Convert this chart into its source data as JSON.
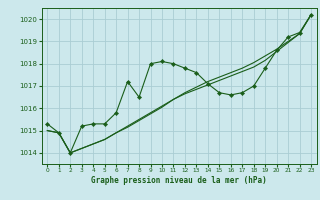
{
  "title": "Graphe pression niveau de la mer (hPa)",
  "background_color": "#cce8ec",
  "grid_color": "#aacdd4",
  "line_color": "#1a5e1a",
  "xlim": [
    -0.5,
    23.5
  ],
  "ylim": [
    1013.5,
    1020.5
  ],
  "yticks": [
    1014,
    1015,
    1016,
    1017,
    1018,
    1019,
    1020
  ],
  "xticks": [
    0,
    1,
    2,
    3,
    4,
    5,
    6,
    7,
    8,
    9,
    10,
    11,
    12,
    13,
    14,
    15,
    16,
    17,
    18,
    19,
    20,
    21,
    22,
    23
  ],
  "series1": {
    "x": [
      0,
      1,
      2,
      3,
      4,
      5,
      6,
      7,
      8,
      9,
      10,
      11,
      12,
      13,
      14,
      15,
      16,
      17,
      18,
      19,
      20,
      21,
      22,
      23
    ],
    "y": [
      1015.3,
      1014.9,
      1014.0,
      1015.2,
      1015.3,
      1015.3,
      1015.8,
      1017.2,
      1016.5,
      1018.0,
      1018.1,
      1018.0,
      1017.8,
      1017.6,
      1017.1,
      1016.7,
      1016.6,
      1016.7,
      1017.0,
      1017.8,
      1018.6,
      1019.2,
      1019.4,
      1020.2
    ]
  },
  "series2": {
    "x": [
      0,
      1,
      2,
      3,
      4,
      5,
      6,
      7,
      8,
      9,
      10,
      11,
      12,
      13,
      14,
      15,
      16,
      17,
      18,
      19,
      20,
      21,
      22,
      23
    ],
    "y": [
      1015.0,
      1014.9,
      1014.0,
      1014.2,
      1014.4,
      1014.6,
      1014.9,
      1015.2,
      1015.5,
      1015.8,
      1016.1,
      1016.4,
      1016.65,
      1016.85,
      1017.05,
      1017.25,
      1017.45,
      1017.65,
      1017.85,
      1018.15,
      1018.55,
      1018.95,
      1019.35,
      1020.2
    ]
  },
  "series3": {
    "x": [
      0,
      1,
      2,
      3,
      4,
      5,
      6,
      7,
      8,
      9,
      10,
      11,
      12,
      13,
      14,
      15,
      16,
      17,
      18,
      19,
      20,
      21,
      22,
      23
    ],
    "y": [
      1015.0,
      1014.9,
      1014.0,
      1014.2,
      1014.4,
      1014.6,
      1014.9,
      1015.15,
      1015.45,
      1015.75,
      1016.05,
      1016.4,
      1016.7,
      1016.95,
      1017.2,
      1017.4,
      1017.6,
      1017.8,
      1018.05,
      1018.35,
      1018.65,
      1019.0,
      1019.35,
      1020.2
    ]
  }
}
